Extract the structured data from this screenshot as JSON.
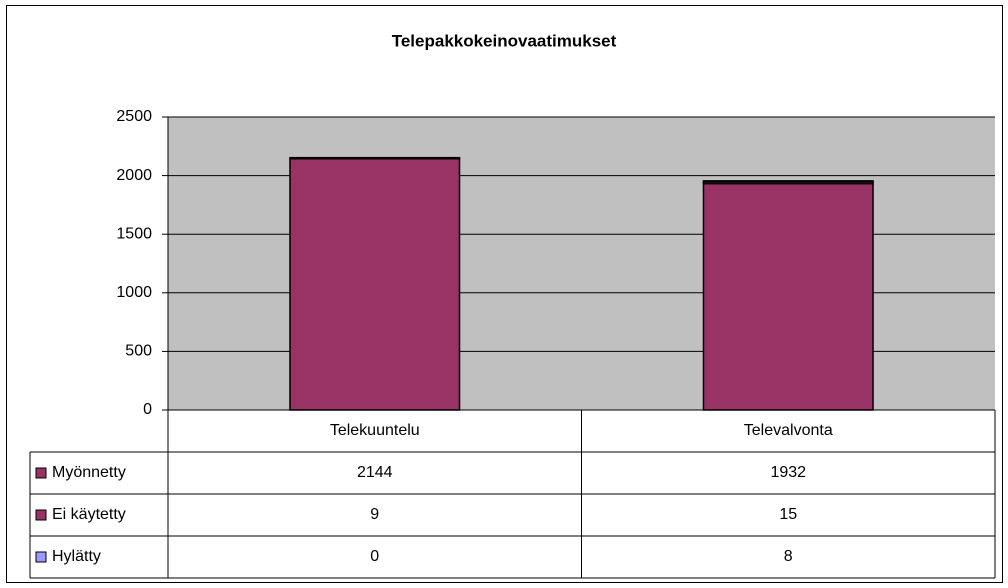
{
  "chart_data": {
    "type": "bar",
    "stacked": true,
    "title": "Telepakkokeinovaatimukset",
    "categories": [
      "Telekuuntelu",
      "Televalvonta"
    ],
    "series": [
      {
        "name": "Myönnetty",
        "color": "#993366",
        "values": [
          2144,
          1932
        ]
      },
      {
        "name": "Ei käytetty",
        "color": "#993366",
        "values": [
          9,
          15
        ]
      },
      {
        "name": "Hylätty",
        "color": "#9999ff",
        "values": [
          0,
          8
        ]
      }
    ],
    "ylim": [
      0,
      2500
    ],
    "yticks": [
      0,
      500,
      1000,
      1500,
      2000,
      2500
    ],
    "grid": true,
    "plot_background": "#c0c0c0"
  }
}
